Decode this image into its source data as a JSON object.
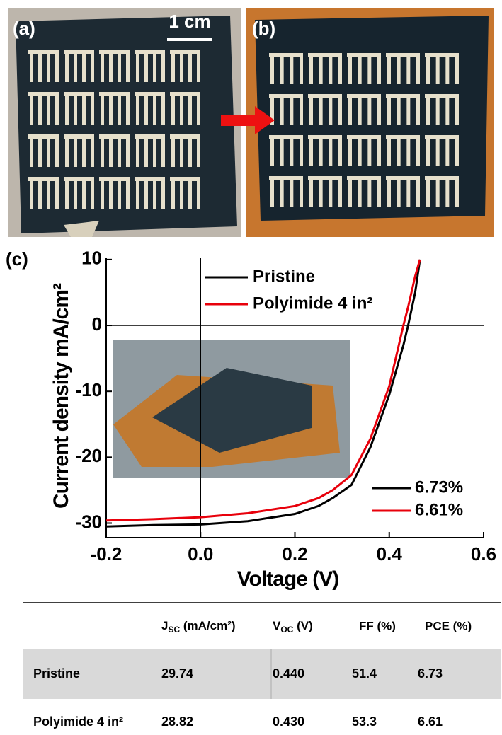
{
  "panels": {
    "a": "(a)",
    "b": "(b)",
    "scale_bar": "1 cm"
  },
  "chart_data": {
    "type": "line",
    "panel_label": "(c)",
    "x_label": "Voltage (V)",
    "y_label": "Current density mA/cm²",
    "x": [
      -0.2,
      -0.1,
      0,
      0.1,
      0.2,
      0.25,
      0.28,
      0.32,
      0.36,
      0.4,
      0.43,
      0.44,
      0.455,
      0.465
    ],
    "series": [
      {
        "name": "Pristine",
        "color": "#000000",
        "values": [
          -30.5,
          -30.3,
          -30.2,
          -29.7,
          -28.6,
          -27.4,
          -26.2,
          -24.2,
          -18.5,
          -10.5,
          -3,
          0,
          5,
          10
        ]
      },
      {
        "name": "Polyimide 4 in²",
        "color": "#e8000b",
        "values": [
          -29.6,
          -29.4,
          -29.1,
          -28.5,
          -27.4,
          -26.2,
          -25,
          -22.7,
          -17.2,
          -9.2,
          0,
          2.8,
          7.5,
          10
        ]
      }
    ],
    "annotations": [
      {
        "text": "6.73%",
        "color": "#000000"
      },
      {
        "text": "6.61%",
        "color": "#e8000b"
      }
    ],
    "xlim": [
      -0.2,
      0.6
    ],
    "ylim": [
      -32.2,
      10.2
    ],
    "xticks": [
      -0.2,
      {
        "value": 0,
        "label": "0.0"
      },
      0.2,
      0.4,
      0.6
    ],
    "yticks": [
      -30,
      -20,
      -10,
      0,
      10
    ],
    "zero_lines": true
  },
  "table": {
    "columns": [
      {
        "main": "J",
        "sub": "SC",
        "rest": " (mA/cm²)"
      },
      {
        "main": "V",
        "sub": "OC",
        "rest": " (V)"
      },
      "FF (%)",
      "PCE (%)"
    ],
    "rows": [
      [
        "Pristine",
        "29.74",
        "0.440",
        "51.4",
        "6.73"
      ],
      [
        "Polyimide 4 in²",
        "28.82",
        "0.430",
        "53.3",
        "6.61"
      ]
    ]
  }
}
